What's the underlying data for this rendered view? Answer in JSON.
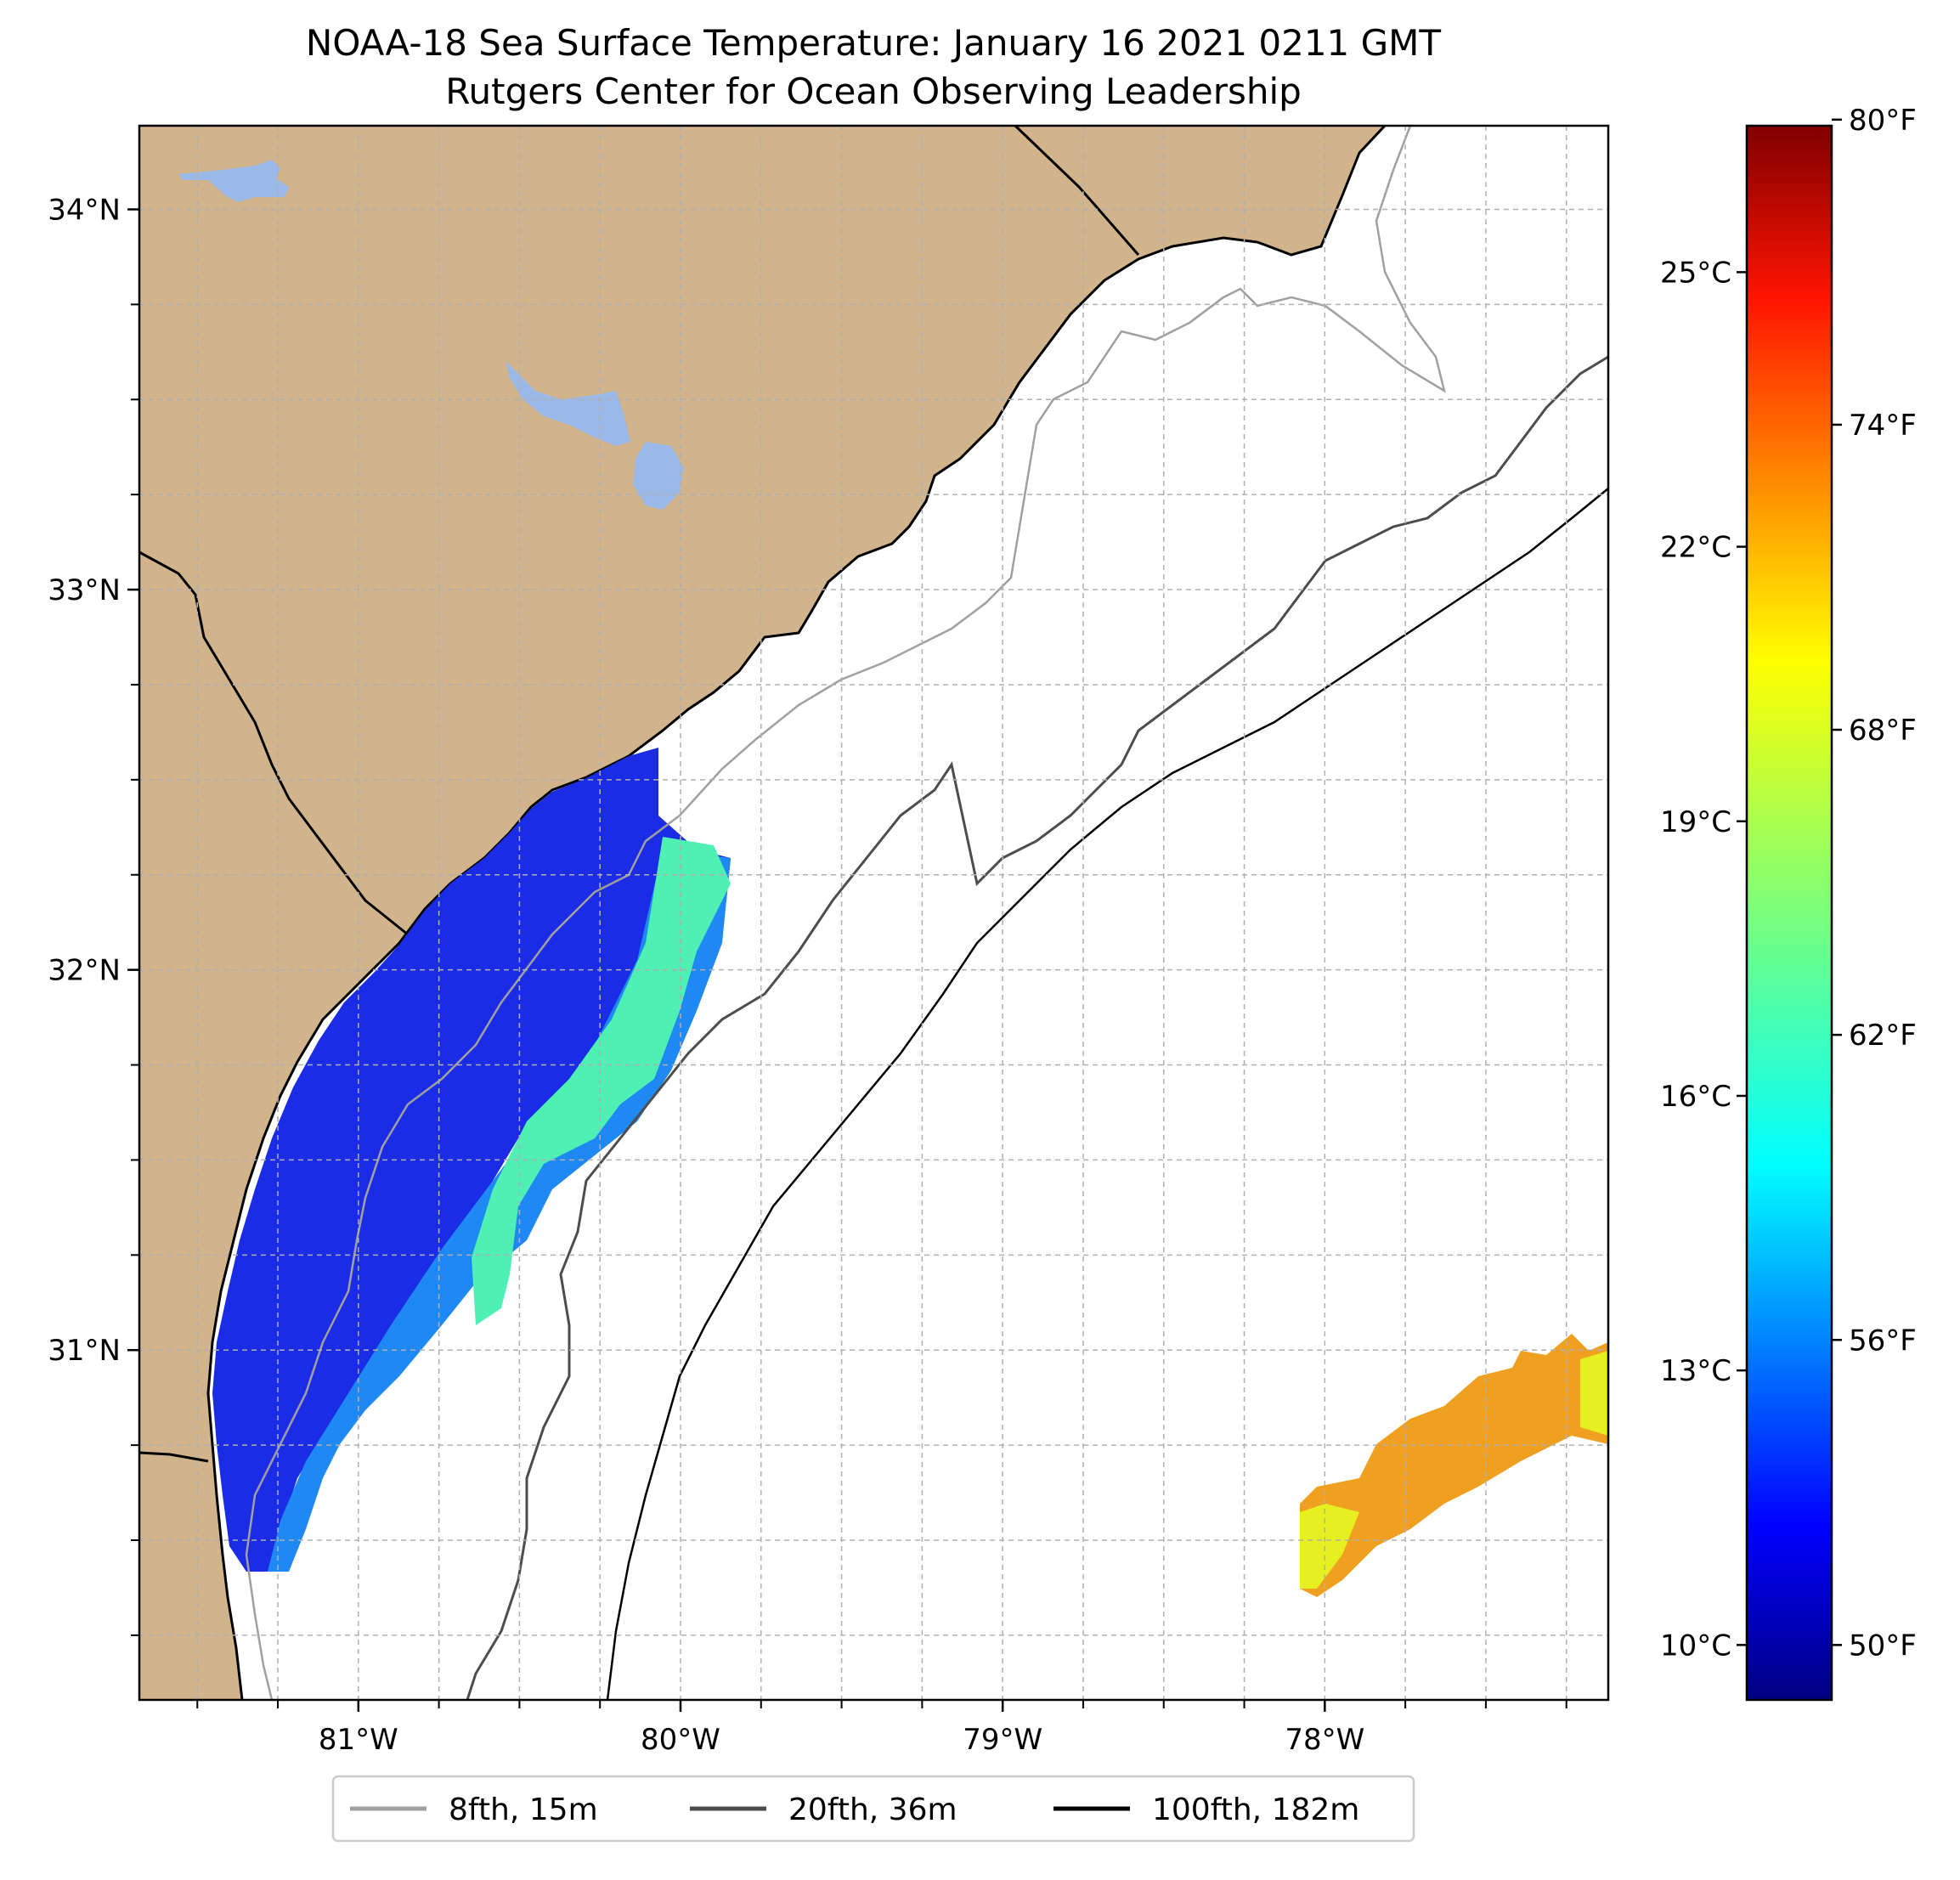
{
  "title": {
    "line1": "NOAA-18 Sea Surface Temperature: January 16 2021 0211 GMT",
    "line2": "Rutgers Center for Ocean Observing Leadership"
  },
  "map": {
    "lon_range": [
      -81.68,
      -77.12
    ],
    "lat_range": [
      30.08,
      34.22
    ],
    "lat_ticks": [
      {
        "value": 34,
        "label": "34°N"
      },
      {
        "value": 33,
        "label": "33°N"
      },
      {
        "value": 32,
        "label": "32°N"
      },
      {
        "value": 31,
        "label": "31°N"
      }
    ],
    "lon_ticks": [
      {
        "value": -81,
        "label": "81°W"
      },
      {
        "value": -80,
        "label": "80°W"
      },
      {
        "value": -79,
        "label": "79°W"
      },
      {
        "value": -78,
        "label": "78°W"
      }
    ],
    "colors": {
      "land": "#d2b48c",
      "lakes": "#9ab8e8",
      "ocean": "#ffffff",
      "grid": "#b0b0b0"
    }
  },
  "colorbar": {
    "colormap": "jet",
    "range_c": [
      9.4,
      26.6
    ],
    "celsius_ticks": [
      {
        "value": 10,
        "label": "10°C"
      },
      {
        "value": 13,
        "label": "13°C"
      },
      {
        "value": 16,
        "label": "16°C"
      },
      {
        "value": 19,
        "label": "19°C"
      },
      {
        "value": 22,
        "label": "22°C"
      },
      {
        "value": 25,
        "label": "25°C"
      }
    ],
    "fahrenheit_ticks": [
      {
        "value": 50,
        "label": "50°F"
      },
      {
        "value": 56,
        "label": "56°F"
      },
      {
        "value": 62,
        "label": "62°F"
      },
      {
        "value": 68,
        "label": "68°F"
      },
      {
        "value": 74,
        "label": "74°F"
      },
      {
        "value": 80,
        "label": "80°F"
      }
    ]
  },
  "legend": {
    "items": [
      {
        "label": "8fth, 15m",
        "color": "#a0a0a0"
      },
      {
        "label": "20fth, 36m",
        "color": "#4d4d4d"
      },
      {
        "label": "100fth, 182m",
        "color": "#000000"
      }
    ]
  }
}
